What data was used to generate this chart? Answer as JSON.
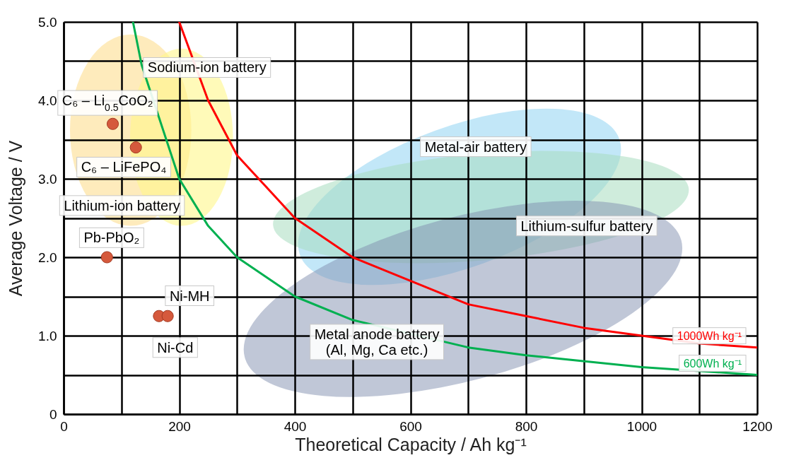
{
  "chart_data": {
    "type": "scatter",
    "xlabel": "Theoretical Capacity / Ah kg⁻¹",
    "ylabel": "Average Voltage / V",
    "xlim": [
      0,
      1200
    ],
    "ylim": [
      0,
      5
    ],
    "xticks": [
      0,
      {
        "value": 100,
        "label": null
      },
      200,
      {
        "value": 300,
        "label": null
      },
      400,
      {
        "value": 500,
        "label": null
      },
      600,
      {
        "value": 700,
        "label": null
      },
      800,
      {
        "value": 900,
        "label": null
      },
      1000,
      {
        "value": 1100,
        "label": null
      },
      1200
    ],
    "yticks": [
      0,
      {
        "value": 0.5,
        "label": null
      },
      {
        "value": 1,
        "label": "1.0"
      },
      {
        "value": 1.5,
        "label": null
      },
      {
        "value": 2,
        "label": "2.0"
      },
      {
        "value": 2.5,
        "label": null
      },
      {
        "value": 3,
        "label": "3.0"
      },
      {
        "value": 3.5,
        "label": null
      },
      {
        "value": 4,
        "label": "4.0"
      },
      {
        "value": 4.5,
        "label": null
      },
      {
        "value": 5,
        "label": "5.0"
      }
    ],
    "grid": true,
    "series": [
      {
        "type": "line",
        "name": "1000Wh kg⁻¹",
        "color": "#ff0000",
        "x": [
          200,
          250,
          300,
          350,
          400,
          500,
          600,
          700,
          800,
          900,
          1000,
          1100,
          1200
        ],
        "values": [
          5.0,
          4.0,
          3.3,
          2.9,
          2.5,
          2.0,
          1.7,
          1.4,
          1.25,
          1.1,
          1.0,
          0.9,
          0.85
        ]
      },
      {
        "type": "line",
        "name": "600Wh kg⁻¹",
        "color": "#00b050",
        "x": [
          120,
          135,
          200,
          250,
          300,
          400,
          500,
          700,
          800,
          1000,
          1200
        ],
        "values": [
          5.0,
          4.45,
          3.0,
          2.4,
          2.0,
          1.5,
          1.2,
          0.85,
          0.75,
          0.6,
          0.5
        ]
      },
      {
        "marker": "circle",
        "color": "#d5593c",
        "x": [
          85,
          125,
          75,
          165,
          180
        ],
        "values": [
          3.7,
          3.4,
          2.0,
          1.25,
          1.25
        ]
      }
    ],
    "annotations": [
      "Sodium-ion battery",
      "Lithium-ion battery",
      "Metal-air battery",
      "Lithium-sulfur battery",
      "Metal anode battery\n(Al, Mg, Ca etc.)",
      "C₆ – Li$_{0.5}$CoO₂",
      "C₆ – LiFePO₄",
      "Pb-PbO₂",
      "Ni-MH",
      "Ni-Cd"
    ]
  }
}
